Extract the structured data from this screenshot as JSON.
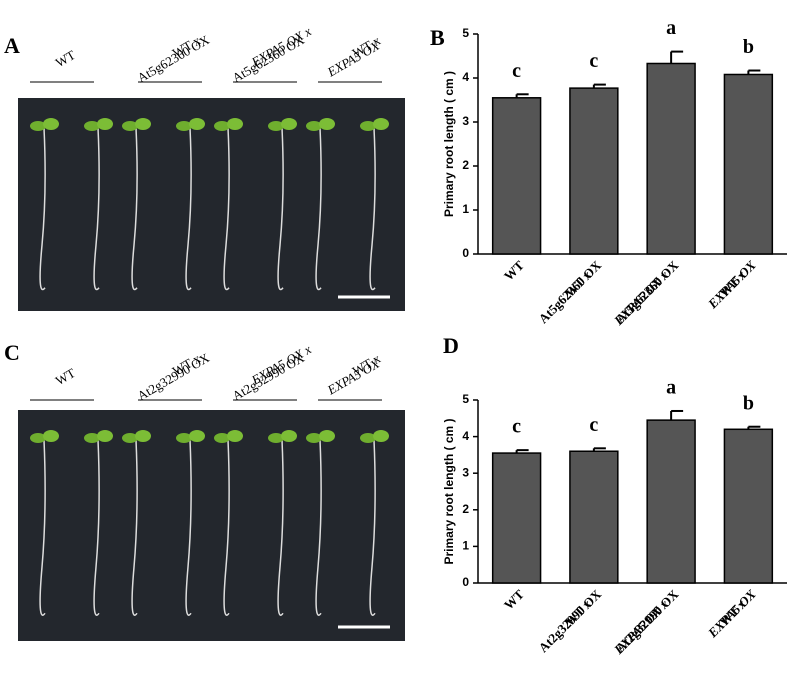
{
  "panels": [
    {
      "letter": "A",
      "labels": [
        [
          "WT"
        ],
        [
          "WT x",
          "At5g62360 OX"
        ],
        [
          "EXPA5 OX x",
          "At5g62360 OX"
        ],
        [
          "WT x",
          "EXPA5 OX"
        ]
      ]
    },
    {
      "letter": "C",
      "labels": [
        [
          "WT"
        ],
        [
          "WT x",
          "At2g32990 OX"
        ],
        [
          "EXPA5 OX x",
          "At2g32990 OX"
        ],
        [
          "WT x",
          "EXPA5 OX"
        ]
      ]
    }
  ],
  "chart_data": [
    {
      "type": "bar",
      "panel": "B",
      "y_label": "Primary root length ( cm )",
      "categories": [
        [
          "WT"
        ],
        [
          "WT x",
          "At5g62360 OX"
        ],
        [
          "EXPA5 OX x",
          "At5g62360 OX"
        ],
        [
          "WT x",
          "EXPA5 OX"
        ]
      ],
      "values": [
        3.55,
        3.77,
        4.33,
        4.08
      ],
      "errors": [
        0.08,
        0.08,
        0.27,
        0.09
      ],
      "annotations": [
        "c",
        "c",
        "a",
        "b"
      ],
      "color": "#555555",
      "ylim": [
        0,
        5
      ],
      "yticks": [
        0,
        1,
        2,
        3,
        4,
        5
      ]
    },
    {
      "type": "bar",
      "panel": "D",
      "y_label": "Primary root length ( cm )",
      "categories": [
        [
          "WT"
        ],
        [
          "WT x",
          "At2g32990 OX"
        ],
        [
          "EXPA5 OX x",
          "At2g32990 OX"
        ],
        [
          "WT x",
          "EXPA5 OX"
        ]
      ],
      "values": [
        3.55,
        3.6,
        4.45,
        4.2
      ],
      "errors": [
        0.08,
        0.08,
        0.25,
        0.07
      ],
      "annotations": [
        "c",
        "c",
        "a",
        "b"
      ],
      "color": "#555555",
      "ylim": [
        0,
        5
      ],
      "yticks": [
        0,
        1,
        2,
        3,
        4,
        5
      ]
    }
  ]
}
